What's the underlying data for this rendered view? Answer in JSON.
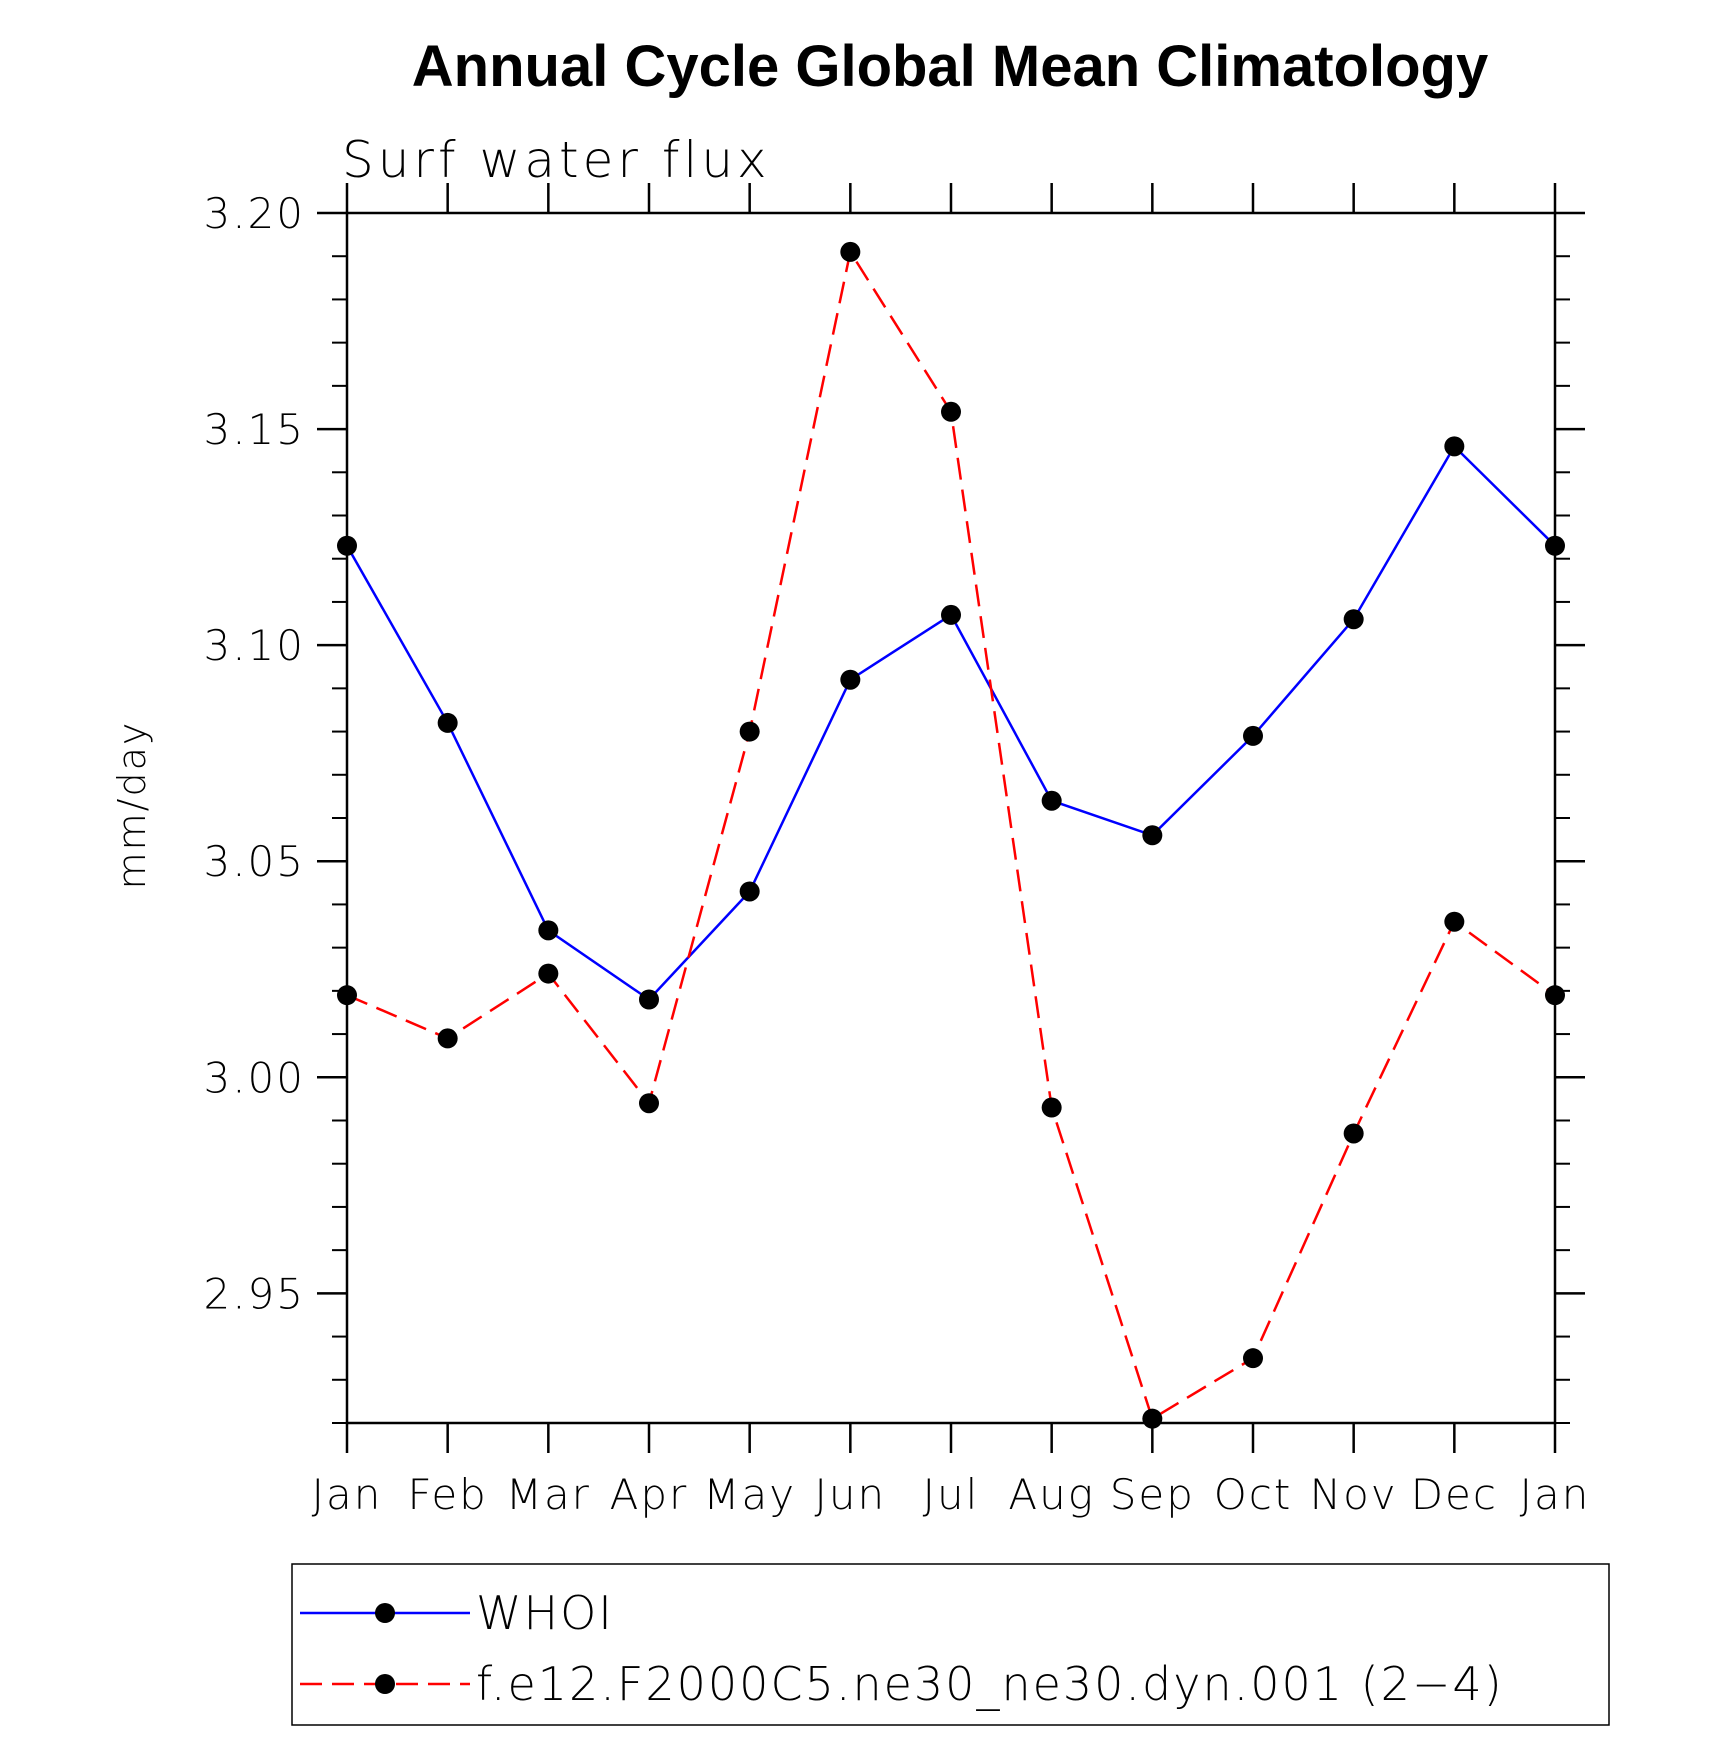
{
  "chart_data": {
    "type": "line",
    "title": "Annual Cycle Global Mean Climatology",
    "subtitle": "Surf water flux",
    "ylabel": "mm/day",
    "xlabel": "",
    "categories": [
      "Jan",
      "Feb",
      "Mar",
      "Apr",
      "May",
      "Jun",
      "Jul",
      "Aug",
      "Sep",
      "Oct",
      "Nov",
      "Dec",
      "Jan"
    ],
    "ylim": [
      2.92,
      3.2
    ],
    "yticks": [
      "2.95",
      "3.00",
      "3.05",
      "3.10",
      "3.15",
      "3.20"
    ],
    "grid": false,
    "legend_position": "bottom",
    "series": [
      {
        "name": "WHOI",
        "color": "#0000ff",
        "dash": "solid",
        "values": [
          3.123,
          3.082,
          3.034,
          3.018,
          3.043,
          3.092,
          3.107,
          3.064,
          3.056,
          3.079,
          3.106,
          3.146,
          3.123
        ]
      },
      {
        "name": "f.e12.F2000C5.ne30_ne30.dyn.001 (2−4)",
        "color": "#ff0000",
        "dash": "dashed",
        "values": [
          3.019,
          3.009,
          3.024,
          2.994,
          3.08,
          3.191,
          3.154,
          2.993,
          2.921,
          2.935,
          2.987,
          3.036,
          3.019
        ]
      }
    ]
  }
}
